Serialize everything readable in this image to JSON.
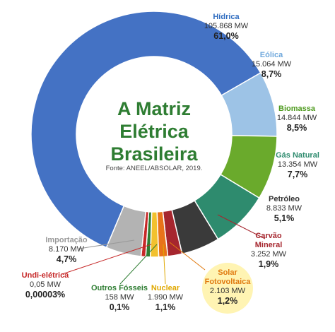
{
  "chart_data": {
    "type": "pie",
    "title_lines": [
      "A Matriz",
      "Elétrica",
      "Brasileira"
    ],
    "source": "Fonte: ANEEL/ABSOLAR, 2019.",
    "slices": [
      {
        "name": "Hídrica",
        "mw": "105.868 MW",
        "pct_label": "61,0%",
        "value": 61.0,
        "color": "#4472c4",
        "name_color": "#2f6cc0"
      },
      {
        "name": "Eólica",
        "mw": "15.064 MW",
        "pct_label": "8,7%",
        "value": 8.7,
        "color": "#9dc3e6",
        "name_color": "#6fa8dc"
      },
      {
        "name": "Biomassa",
        "mw": "14.844 MW",
        "pct_label": "8,5%",
        "value": 8.5,
        "color": "#6aaa2c",
        "name_color": "#4e9a1e"
      },
      {
        "name": "Gás Natural",
        "mw": "13.354 MW",
        "pct_label": "7,7%",
        "value": 7.7,
        "color": "#2e8b6e",
        "name_color": "#2e8b6e"
      },
      {
        "name": "Petróleo",
        "mw": "8.833 MW",
        "pct_label": "5,1%",
        "value": 5.1,
        "color": "#3a3a3a",
        "name_color": "#333333"
      },
      {
        "name": "Carvão Mineral",
        "name_lines": [
          "Carvão",
          "Mineral"
        ],
        "mw": "3.252 MW",
        "pct_label": "1,9%",
        "value": 1.9,
        "color": "#a6262e",
        "name_color": "#a6262e"
      },
      {
        "name": "Solar Fotovoltaica",
        "name_lines": [
          "Solar",
          "Fotovoltaica"
        ],
        "mw": "2.103 MW",
        "pct_label": "1,2%",
        "value": 1.2,
        "color": "#e8731a",
        "name_color": "#e07a10"
      },
      {
        "name": "Nuclear",
        "mw": "1.990 MW",
        "pct_label": "1,1%",
        "value": 1.1,
        "color": "#f2c12e",
        "name_color": "#e0a800"
      },
      {
        "name": "Outros Fósseis",
        "mw": "158 MW",
        "pct_label": "0,1%",
        "value": 0.1,
        "color": "#2e7d32",
        "name_color": "#2e7d32"
      },
      {
        "name": "Undi-elétrica",
        "mw": "0,05 MW",
        "pct_label": "0,00003%",
        "value": 3e-05,
        "color": "#c62828",
        "name_color": "#c62828"
      },
      {
        "name": "Importação",
        "mw": "8.170 MW",
        "pct_label": "4,7%",
        "value": 4.7,
        "color": "#b3b3b3",
        "name_color": "#999999"
      }
    ]
  }
}
